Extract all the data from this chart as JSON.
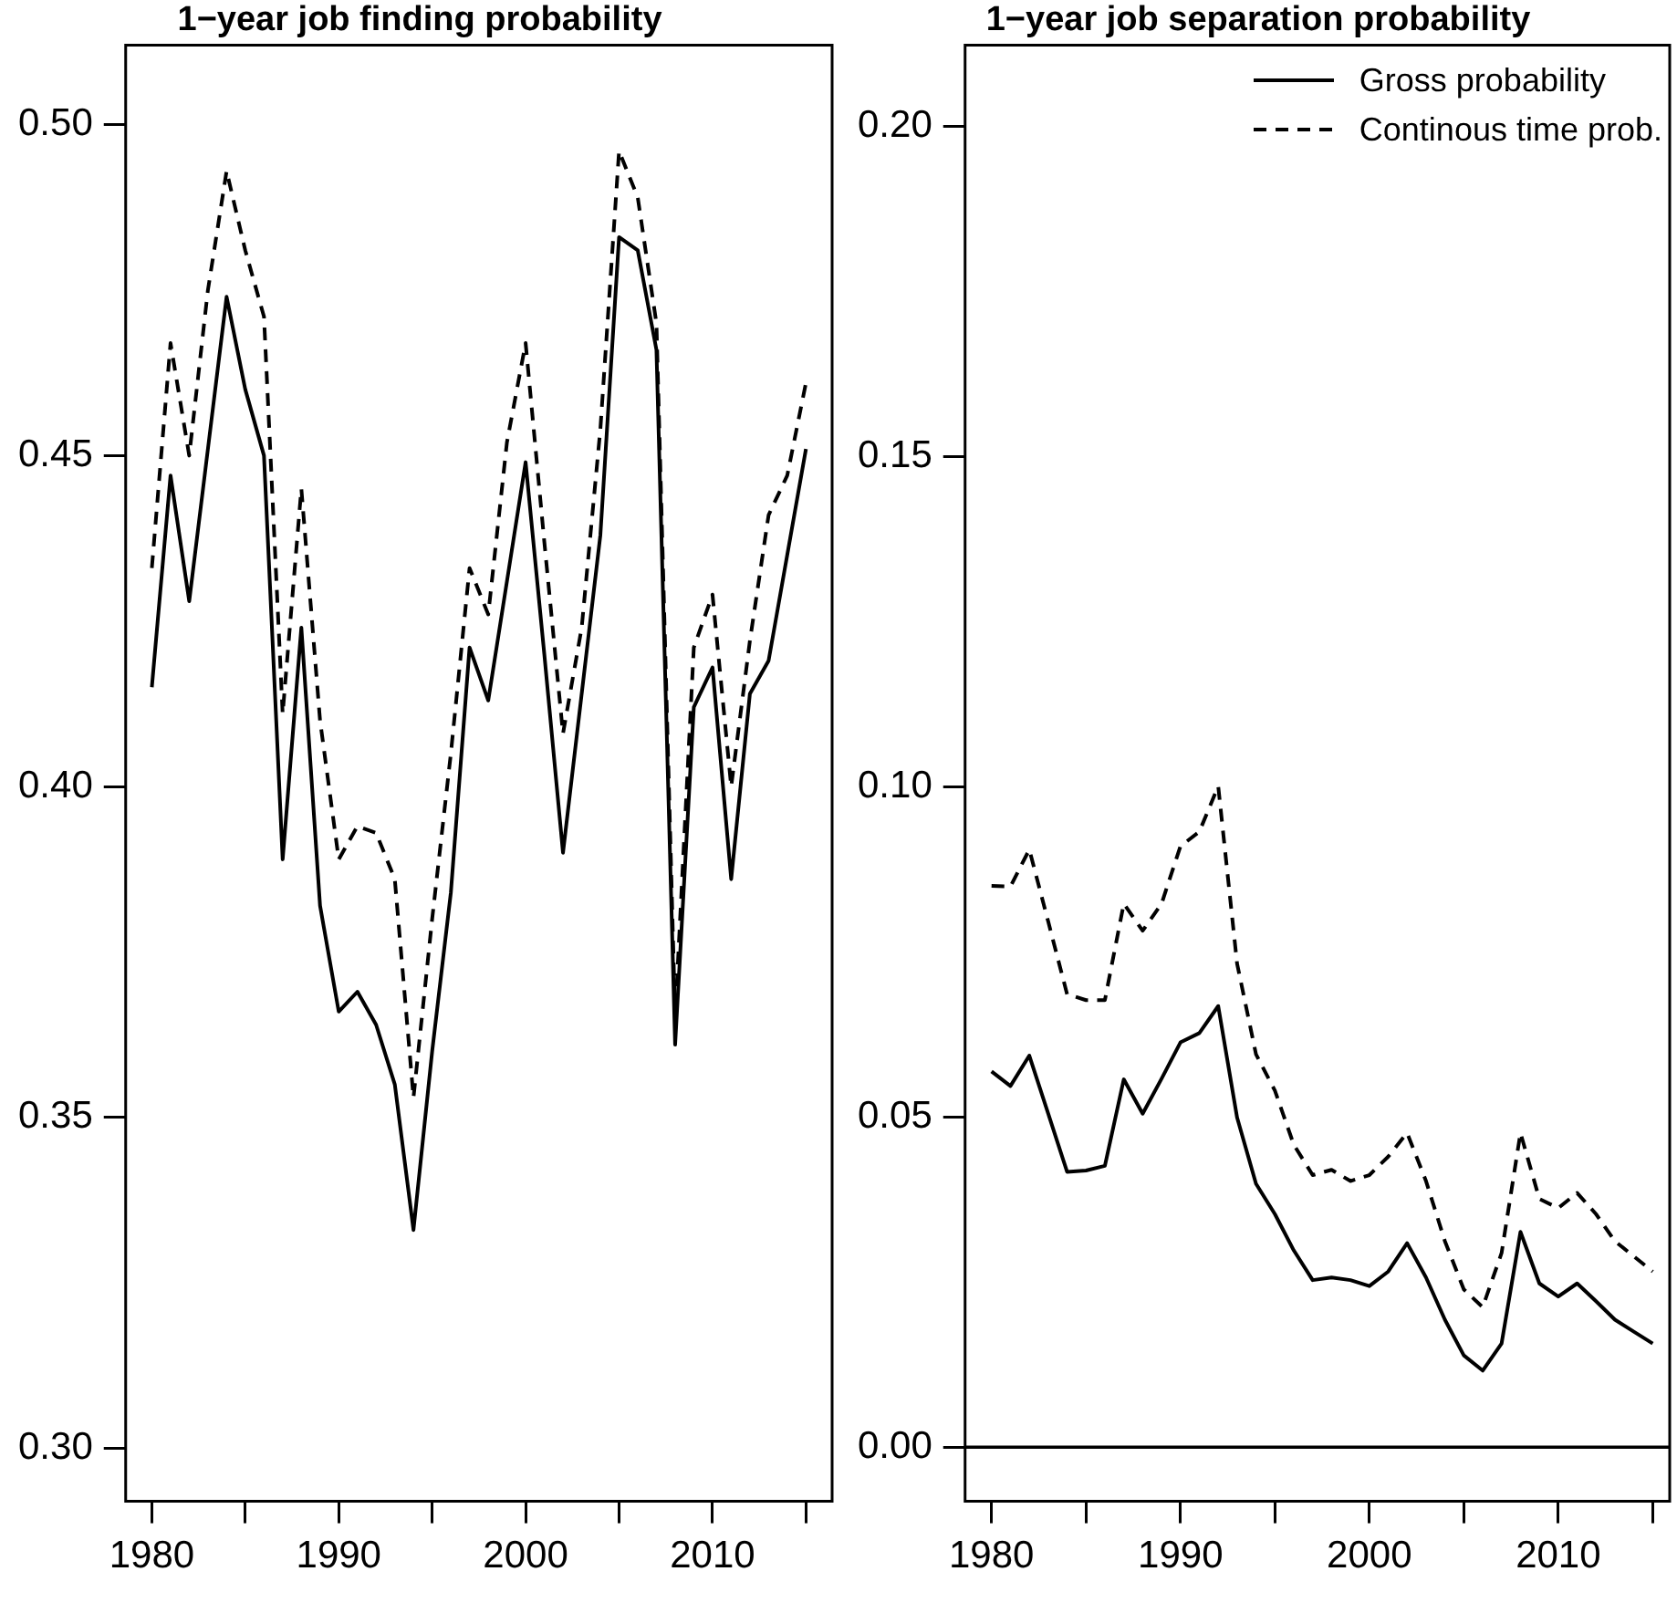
{
  "chart_data": [
    {
      "type": "line",
      "title": "1−year job finding probability",
      "x": [
        1980,
        1981,
        1982,
        1983,
        1984,
        1985,
        1986,
        1987,
        1988,
        1989,
        1990,
        1991,
        1992,
        1993,
        1994,
        1995,
        1996,
        1997,
        1998,
        1999,
        2000,
        2001,
        2002,
        2003,
        2004,
        2005,
        2006,
        2007,
        2008,
        2009,
        2010,
        2011,
        2012,
        2013,
        2014,
        2015
      ],
      "series": [
        {
          "color": "#000000",
          "line_style": "solid",
          "values": [
            0.415,
            0.447,
            0.428,
            0.451,
            0.474,
            0.46,
            0.45,
            0.389,
            0.424,
            0.382,
            0.366,
            0.369,
            0.364,
            0.355,
            0.333,
            0.36,
            0.384,
            0.421,
            0.413,
            0.431,
            0.449,
            0.42,
            0.39,
            0.414,
            0.438,
            0.483,
            0.481,
            0.466,
            0.361,
            0.412,
            0.418,
            0.386,
            0.414,
            0.419,
            0.435,
            0.451
          ]
        },
        {
          "color": "#000000",
          "line_style": "dashed",
          "values": [
            0.433,
            0.467,
            0.45,
            0.475,
            0.493,
            0.481,
            0.471,
            0.411,
            0.445,
            0.41,
            0.389,
            0.394,
            0.393,
            0.386,
            0.353,
            0.38,
            0.405,
            0.433,
            0.426,
            0.452,
            0.467,
            0.437,
            0.408,
            0.424,
            0.454,
            0.496,
            0.489,
            0.47,
            0.365,
            0.421,
            0.429,
            0.4,
            0.422,
            0.441,
            0.447,
            0.461
          ]
        }
      ],
      "xlim": [
        1978.6,
        2016.4
      ],
      "ylim": [
        0.292,
        0.512
      ],
      "xticks": [
        1980,
        {
          "value": 1985,
          "label": null
        },
        1990,
        {
          "value": 1995,
          "label": null
        },
        2000,
        {
          "value": 2005,
          "label": null
        },
        2010,
        {
          "value": 2015,
          "label": null
        }
      ],
      "yticks": [
        {
          "value": 0.3,
          "label": "0.30"
        },
        {
          "value": 0.35,
          "label": "0.35"
        },
        {
          "value": 0.4,
          "label": "0.40"
        },
        {
          "value": 0.45,
          "label": "0.45"
        },
        {
          "value": 0.5,
          "label": "0.50"
        }
      ],
      "grid": false,
      "legend": false
    },
    {
      "type": "line",
      "title": "1−year job separation probability",
      "x": [
        1980,
        1981,
        1982,
        1983,
        1984,
        1985,
        1986,
        1987,
        1988,
        1989,
        1990,
        1991,
        1992,
        1993,
        1994,
        1995,
        1996,
        1997,
        1998,
        1999,
        2000,
        2001,
        2002,
        2003,
        2004,
        2005,
        2006,
        2007,
        2008,
        2009,
        2010,
        2011,
        2012,
        2013,
        2014,
        2015
      ],
      "series": [
        {
          "name": "Gross probability",
          "color": "#000000",
          "line_style": "solid",
          "values": [
            0.0569,
            0.0547,
            0.0593,
            0.0505,
            0.0417,
            0.0419,
            0.0426,
            0.0557,
            0.0505,
            0.0558,
            0.0613,
            0.0627,
            0.0668,
            0.0499,
            0.0399,
            0.0353,
            0.0298,
            0.0253,
            0.0257,
            0.0253,
            0.0244,
            0.0266,
            0.0309,
            0.0257,
            0.0193,
            0.0139,
            0.0116,
            0.0157,
            0.0326,
            0.0248,
            0.0228,
            0.0248,
            0.0221,
            0.0193,
            0.0175,
            0.0157
          ]
        },
        {
          "name": "Continous time prob.",
          "color": "#000000",
          "line_style": "dashed",
          "values": [
            0.085,
            0.0849,
            0.0905,
            0.0796,
            0.0686,
            0.0677,
            0.0677,
            0.0823,
            0.0782,
            0.0823,
            0.091,
            0.0932,
            0.1001,
            0.0732,
            0.0595,
            0.054,
            0.0458,
            0.0412,
            0.042,
            0.0403,
            0.0412,
            0.044,
            0.0476,
            0.0403,
            0.0312,
            0.0239,
            0.0212,
            0.0294,
            0.0476,
            0.0376,
            0.0362,
            0.0385,
            0.0353,
            0.0312,
            0.0289,
            0.0266
          ]
        }
      ],
      "xlim": [
        1978.6,
        2015.9
      ],
      "ylim": [
        -0.0082,
        0.2123
      ],
      "xticks": [
        1980,
        {
          "value": 1985,
          "label": null
        },
        1990,
        {
          "value": 1995,
          "label": null
        },
        2000,
        {
          "value": 2005,
          "label": null
        },
        2010,
        {
          "value": 2015,
          "label": null
        }
      ],
      "yticks": [
        {
          "value": 0,
          "label": "0.00"
        },
        {
          "value": 0.05,
          "label": "0.05"
        },
        {
          "value": 0.1,
          "label": "0.10"
        },
        {
          "value": 0.15,
          "label": "0.15"
        },
        {
          "value": 0.2,
          "label": "0.20"
        }
      ],
      "ref_lines": [
        {
          "axis": "y",
          "value": 0
        }
      ],
      "grid": false,
      "legend": "top right"
    }
  ]
}
